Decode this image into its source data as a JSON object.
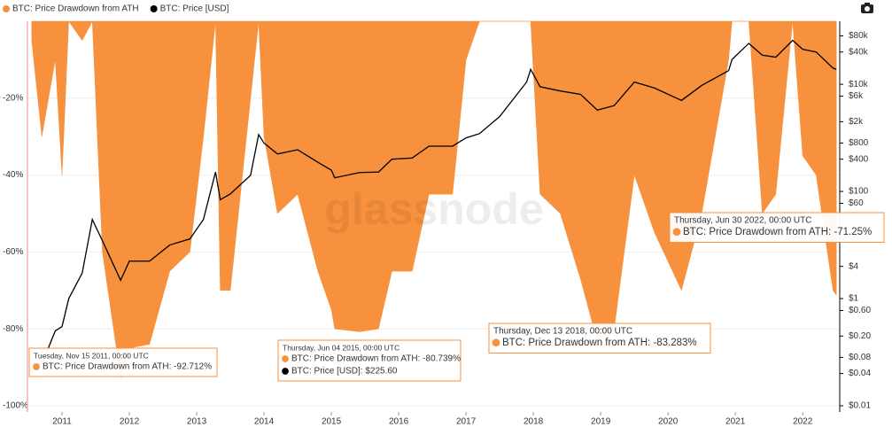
{
  "chart_data": {
    "type": "area",
    "legend": "top-left",
    "grid": true,
    "watermark": "glassnode",
    "x": [
      2010.55,
      2010.7,
      2010.9,
      2011.0,
      2011.1,
      2011.3,
      2011.45,
      2011.6,
      2011.87,
      2012.0,
      2012.3,
      2012.6,
      2012.9,
      2013.1,
      2013.28,
      2013.35,
      2013.5,
      2013.8,
      2013.92,
      2014.0,
      2014.2,
      2014.5,
      2014.8,
      2015.0,
      2015.05,
      2015.42,
      2015.7,
      2015.9,
      2016.2,
      2016.45,
      2016.8,
      2017.0,
      2017.2,
      2017.5,
      2017.9,
      2017.96,
      2018.1,
      2018.4,
      2018.7,
      2018.95,
      2019.2,
      2019.5,
      2019.8,
      2020.2,
      2020.5,
      2020.9,
      2020.95,
      2021.2,
      2021.4,
      2021.6,
      2021.85,
      2022.0,
      2022.2,
      2022.45,
      2022.5
    ],
    "xlim": [
      2010.5,
      2022.55
    ],
    "xticks": [
      2011,
      2012,
      2013,
      2014,
      2015,
      2016,
      2017,
      2018,
      2019,
      2020,
      2021,
      2022
    ],
    "ylim": [
      -100,
      0
    ],
    "yticks": [
      {
        "value": -20,
        "label": "-20%"
      },
      {
        "value": -40,
        "label": "-40%"
      },
      {
        "value": -60,
        "label": "-60%"
      },
      {
        "value": -80,
        "label": "-80%"
      },
      {
        "value": -100,
        "label": "-100%"
      }
    ],
    "y2lim": [
      0.01,
      150000
    ],
    "y2log": true,
    "y2ticks": [
      {
        "value": 80000,
        "label": "$80k"
      },
      {
        "value": 40000,
        "label": "$40k"
      },
      {
        "value": 10000,
        "label": "$10k"
      },
      {
        "value": 6000,
        "label": "$6k"
      },
      {
        "value": 2000,
        "label": "$2k"
      },
      {
        "value": 800,
        "label": "$800"
      },
      {
        "value": 400,
        "label": "$400"
      },
      {
        "value": 100,
        "label": "$100"
      },
      {
        "value": 60,
        "label": "$60"
      },
      {
        "value": 4,
        "label": "$4"
      },
      {
        "value": 1,
        "label": "$1"
      },
      {
        "value": 0.6,
        "label": "$0.60"
      },
      {
        "value": 0.2,
        "label": "$0.20"
      },
      {
        "value": 0.08,
        "label": "$0.08"
      },
      {
        "value": 0.04,
        "label": "$0.04"
      },
      {
        "value": 0.01,
        "label": "$0.01"
      }
    ],
    "series": [
      {
        "name": "BTC: Price Drawdown from ATH",
        "type": "area",
        "color": "#f7913d",
        "values": [
          -5,
          -30,
          -10,
          -40,
          0,
          -5,
          0,
          -60,
          -92.712,
          -85,
          -84,
          -65,
          -60,
          -30,
          0,
          -70,
          -70,
          -20,
          0,
          -30,
          -50,
          -45,
          -65,
          -75,
          -80,
          -80.739,
          -80,
          -65,
          -65,
          -45,
          -45,
          -10,
          0,
          0,
          0,
          0,
          -45,
          -50,
          -67,
          -83.283,
          -80,
          -40,
          -55,
          -70,
          -50,
          -10,
          0,
          0,
          -50,
          -45,
          0,
          -35,
          -40,
          -70,
          -71.25
        ]
      },
      {
        "name": "BTC: Price [USD]",
        "type": "line",
        "color": "#000000",
        "axis": "y2",
        "values": [
          0.06,
          0.06,
          0.25,
          0.3,
          1,
          3,
          30,
          12,
          2.2,
          5,
          5,
          10,
          13,
          30,
          230,
          70,
          90,
          200,
          1150,
          800,
          500,
          600,
          350,
          250,
          180,
          225.6,
          230,
          400,
          420,
          700,
          700,
          1000,
          1200,
          2500,
          11000,
          19000,
          9000,
          7500,
          6500,
          3300,
          4000,
          11000,
          8500,
          5000,
          9500,
          18000,
          29000,
          58000,
          35000,
          32000,
          66000,
          45000,
          40000,
          20000,
          19000
        ]
      }
    ],
    "annotations": [
      {
        "date": "Tuesday, Nov 15 2011, 00:00 UTC",
        "lines": [
          "BTC: Price Drawdown from ATH: -92.712%"
        ]
      },
      {
        "date": "Thursday, Jun 04 2015, 00:00 UTC",
        "lines": [
          "BTC: Price Drawdown from ATH: -80.739%",
          "BTC: Price [USD]: $225.60"
        ]
      },
      {
        "date": "Thursday, Dec 13 2018, 00:00 UTC",
        "lines": [
          "BTC: Price Drawdown from ATH: -83.283%"
        ]
      },
      {
        "date": "Thursday, Jun 30 2022, 00:00 UTC",
        "lines": [
          "BTC: Price Drawdown from ATH: -71.25%"
        ]
      }
    ]
  }
}
